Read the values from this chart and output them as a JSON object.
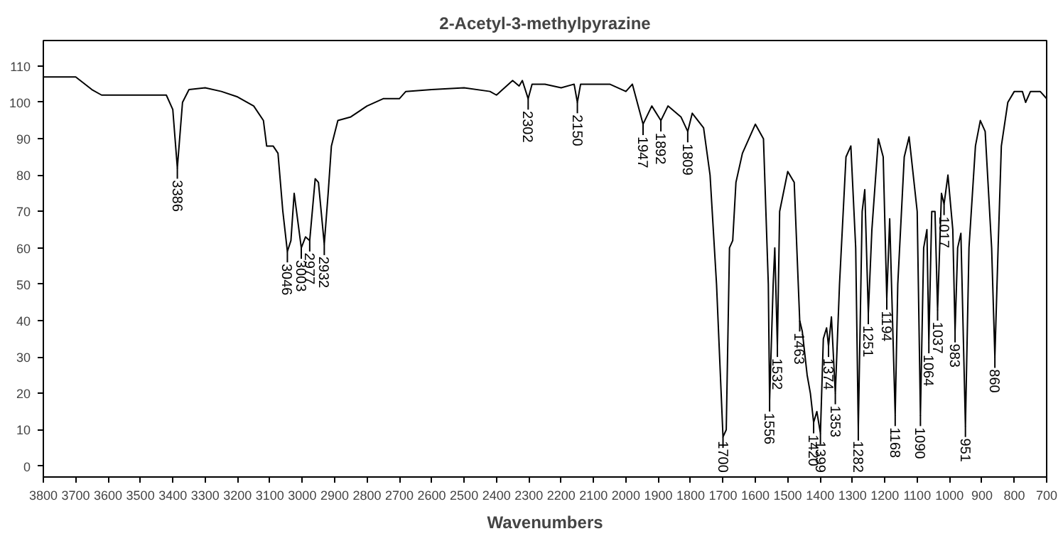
{
  "chart_data": {
    "type": "line",
    "title": "2-Acetyl-3-methylpyrazine",
    "xlabel": "Wavenumbers",
    "xlim": [
      3800,
      700
    ],
    "ylim": [
      -3,
      117
    ],
    "xticks": [
      3800,
      3700,
      3600,
      3500,
      3400,
      3300,
      3200,
      3100,
      3000,
      2900,
      2800,
      2700,
      2600,
      2500,
      2400,
      2300,
      2200,
      2100,
      2000,
      1900,
      1800,
      1700,
      1600,
      1500,
      1400,
      1300,
      1200,
      1100,
      1000,
      900,
      800,
      700
    ],
    "yticks": [
      0,
      10,
      20,
      30,
      40,
      50,
      60,
      70,
      80,
      90,
      100,
      110
    ],
    "grid": false,
    "marker": "none",
    "line_style": "solid",
    "series": [
      {
        "color": "#000000",
        "x": [
          3800,
          3700,
          3650,
          3620,
          3500,
          3420,
          3400,
          3386,
          3370,
          3350,
          3300,
          3250,
          3200,
          3150,
          3120,
          3110,
          3090,
          3075,
          3060,
          3046,
          3035,
          3025,
          3003,
          2990,
          2977,
          2960,
          2950,
          2932,
          2920,
          2910,
          2890,
          2850,
          2800,
          2750,
          2700,
          2680,
          2600,
          2500,
          2420,
          2400,
          2350,
          2330,
          2320,
          2302,
          2290,
          2250,
          2200,
          2160,
          2150,
          2140,
          2050,
          2000,
          1980,
          1947,
          1920,
          1892,
          1870,
          1830,
          1809,
          1795,
          1760,
          1740,
          1720,
          1700,
          1690,
          1680,
          1670,
          1660,
          1640,
          1600,
          1575,
          1560,
          1556,
          1545,
          1540,
          1532,
          1525,
          1500,
          1480,
          1463,
          1455,
          1440,
          1430,
          1420,
          1410,
          1399,
          1390,
          1380,
          1374,
          1365,
          1353,
          1340,
          1320,
          1305,
          1290,
          1282,
          1270,
          1262,
          1251,
          1240,
          1220,
          1205,
          1194,
          1185,
          1168,
          1160,
          1140,
          1125,
          1100,
          1090,
          1080,
          1070,
          1064,
          1055,
          1045,
          1037,
          1025,
          1017,
          1005,
          990,
          983,
          975,
          965,
          951,
          940,
          920,
          905,
          890,
          870,
          860,
          850,
          840,
          820,
          800,
          775,
          765,
          750,
          720,
          700
        ],
        "values": [
          107,
          107,
          103.5,
          102,
          102,
          102,
          98,
          82,
          100,
          103.5,
          104,
          103,
          101.5,
          99,
          95,
          88,
          88,
          86,
          70,
          59,
          62,
          75,
          60,
          63,
          62,
          79,
          78,
          61,
          75,
          88,
          95,
          96,
          99,
          101,
          101,
          103,
          103.5,
          104,
          103,
          102,
          106,
          104.5,
          106,
          101,
          105,
          105,
          104,
          105,
          100,
          105,
          105,
          103,
          105,
          94,
          99,
          95,
          99,
          96,
          92,
          97,
          93,
          80,
          50,
          8,
          10,
          60,
          62,
          78,
          86,
          94,
          90,
          50,
          18,
          50,
          60,
          33,
          70,
          81,
          78,
          40,
          37,
          25,
          20,
          12,
          15,
          9,
          35,
          38,
          33,
          41,
          20,
          50,
          85,
          88,
          60,
          10,
          70,
          76,
          42,
          65,
          90,
          85,
          46,
          68,
          14,
          50,
          85,
          90.5,
          70,
          14,
          60,
          65,
          34,
          70,
          70,
          43,
          75,
          72,
          80,
          65,
          37,
          60,
          64,
          11,
          60,
          88,
          95,
          92,
          60,
          30,
          60,
          88,
          100,
          103,
          103,
          100,
          103,
          103,
          101
        ]
      }
    ],
    "annotations": [
      {
        "text": "3386",
        "x": 3386,
        "y": 82
      },
      {
        "text": "3046",
        "x": 3046,
        "y": 59
      },
      {
        "text": "3003",
        "x": 3003,
        "y": 60
      },
      {
        "text": "2977",
        "x": 2977,
        "y": 62
      },
      {
        "text": "2932",
        "x": 2932,
        "y": 61
      },
      {
        "text": "2302",
        "x": 2302,
        "y": 101
      },
      {
        "text": "2150",
        "x": 2150,
        "y": 100
      },
      {
        "text": "1947",
        "x": 1947,
        "y": 94
      },
      {
        "text": "1892",
        "x": 1892,
        "y": 95
      },
      {
        "text": "1809",
        "x": 1809,
        "y": 92
      },
      {
        "text": "1700",
        "x": 1700,
        "y": 8
      },
      {
        "text": "1556",
        "x": 1556,
        "y": 18
      },
      {
        "text": "1532",
        "x": 1532,
        "y": 33
      },
      {
        "text": "1463",
        "x": 1463,
        "y": 40
      },
      {
        "text": "1420",
        "x": 1420,
        "y": 12
      },
      {
        "text": "1399",
        "x": 1399,
        "y": 9
      },
      {
        "text": "1374",
        "x": 1374,
        "y": 33
      },
      {
        "text": "1353",
        "x": 1353,
        "y": 20
      },
      {
        "text": "1282",
        "x": 1282,
        "y": 10
      },
      {
        "text": "1251",
        "x": 1251,
        "y": 42
      },
      {
        "text": "1194",
        "x": 1194,
        "y": 46
      },
      {
        "text": "1168",
        "x": 1168,
        "y": 14
      },
      {
        "text": "1090",
        "x": 1090,
        "y": 14
      },
      {
        "text": "1064",
        "x": 1064,
        "y": 34
      },
      {
        "text": "1037",
        "x": 1037,
        "y": 43
      },
      {
        "text": "1017",
        "x": 1017,
        "y": 72
      },
      {
        "text": "983",
        "x": 983,
        "y": 37
      },
      {
        "text": "951",
        "x": 951,
        "y": 11
      },
      {
        "text": "860",
        "x": 860,
        "y": 30
      }
    ]
  }
}
